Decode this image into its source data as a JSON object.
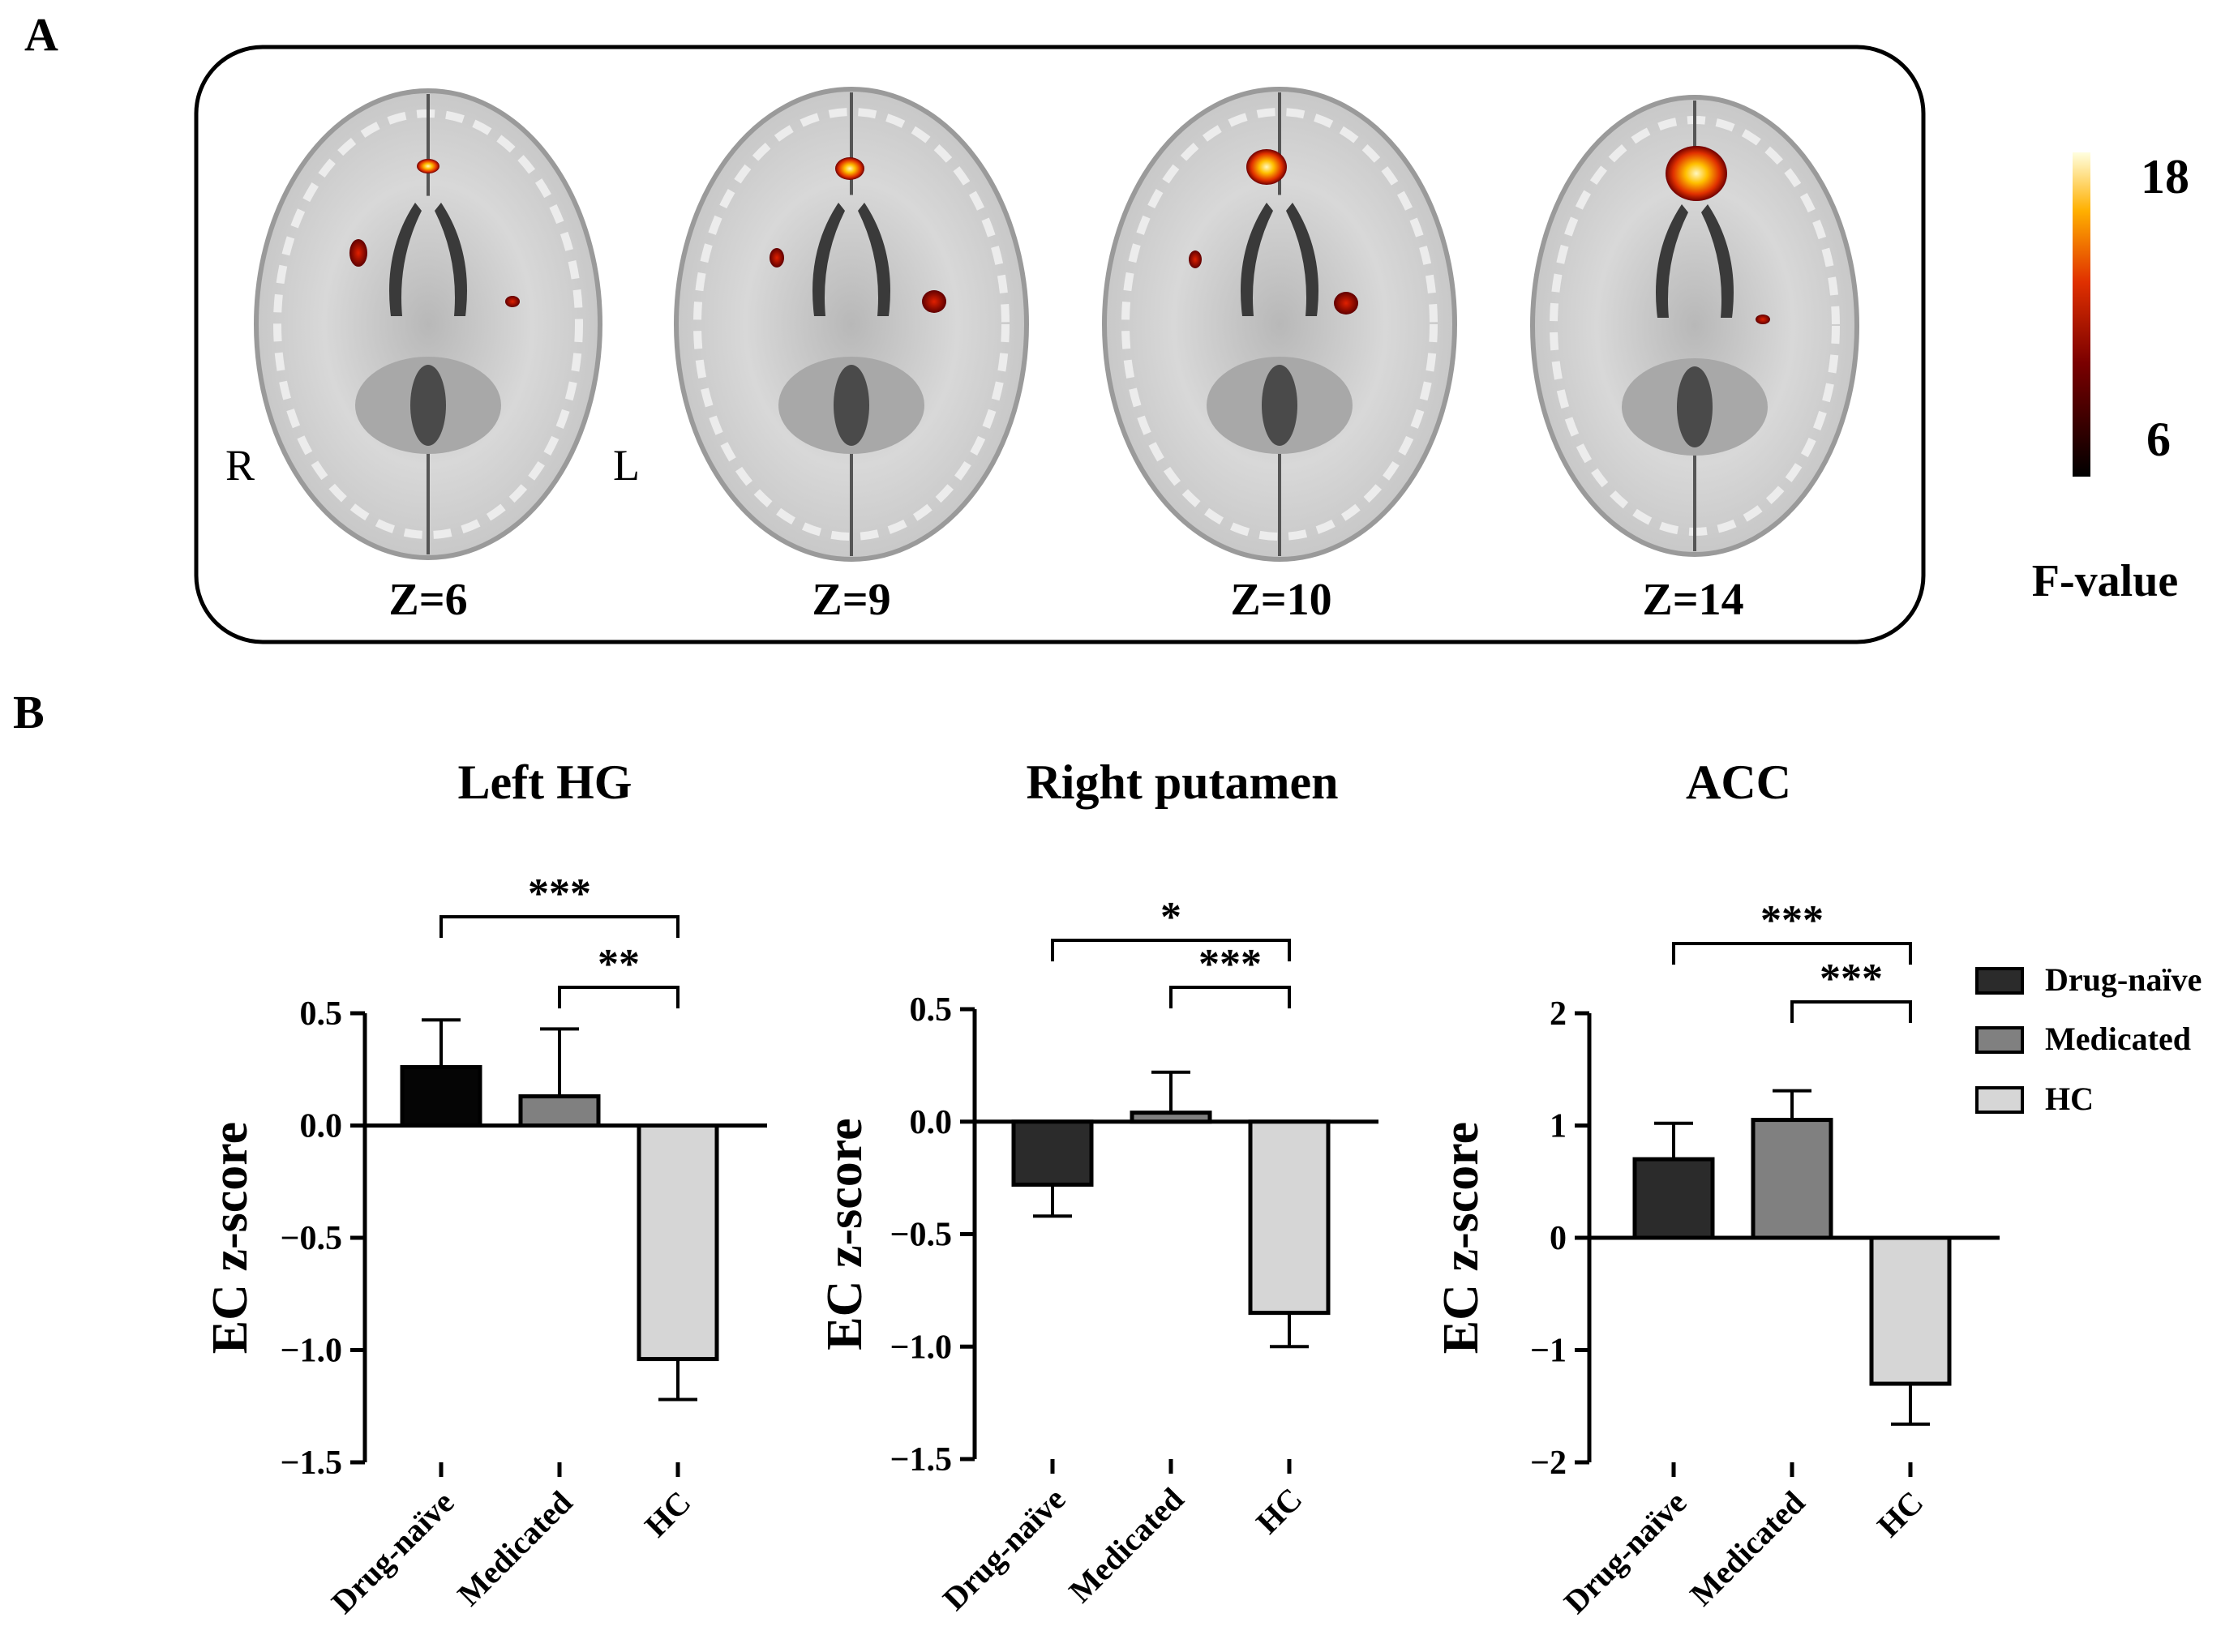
{
  "panel_a": {
    "label": "A",
    "orientation": {
      "right": "R",
      "left": "L"
    },
    "slices": [
      "Z=6",
      "Z=9",
      "Z=10",
      "Z=14"
    ],
    "colorbar": {
      "max": "18",
      "min": "6",
      "title": "F-value"
    }
  },
  "panel_b": {
    "label": "B",
    "legend": [
      "Drug-naïve",
      "Medicated",
      "HC"
    ]
  },
  "colors": {
    "drug_naive": "#2b2b2b",
    "drug_naive_first": "#050505",
    "medicated": "#808080",
    "hc": "#d6d6d6",
    "axis": "#000000"
  },
  "chart_data": [
    {
      "type": "bar",
      "title": "Left HG",
      "ylabel": "EC z-score",
      "categories": [
        "Drug-naïve",
        "Medicated",
        "HC"
      ],
      "values": [
        0.26,
        0.13,
        -1.04
      ],
      "errors": [
        0.21,
        0.3,
        0.18
      ],
      "ylim": [
        -1.5,
        0.5
      ],
      "yticks": [
        0.5,
        0.0,
        -0.5,
        -1.0,
        -1.5
      ],
      "ytick_labels": [
        "0.5",
        "0.0",
        "−0.5",
        "−1.0",
        "−1.5"
      ],
      "significance": [
        {
          "from": 0,
          "to": 2,
          "label": "***"
        },
        {
          "from": 1,
          "to": 2,
          "label": "**"
        }
      ]
    },
    {
      "type": "bar",
      "title": "Right putamen",
      "ylabel": "EC z-score",
      "categories": [
        "Drug-naïve",
        "Medicated",
        "HC"
      ],
      "values": [
        -0.28,
        0.04,
        -0.85
      ],
      "errors": [
        0.14,
        0.18,
        0.15
      ],
      "ylim": [
        -1.5,
        0.5
      ],
      "yticks": [
        0.5,
        0.0,
        -0.5,
        -1.0,
        -1.5
      ],
      "ytick_labels": [
        "0.5",
        "0.0",
        "−0.5",
        "−1.0",
        "−1.5"
      ],
      "significance": [
        {
          "from": 0,
          "to": 2,
          "label": "*"
        },
        {
          "from": 1,
          "to": 2,
          "label": "***"
        }
      ]
    },
    {
      "type": "bar",
      "title": "ACC",
      "ylabel": "EC z-score",
      "categories": [
        "Drug-naïve",
        "Medicated",
        "HC"
      ],
      "values": [
        0.7,
        1.05,
        -1.3
      ],
      "errors": [
        0.32,
        0.26,
        0.36
      ],
      "ylim": [
        -2,
        2
      ],
      "yticks": [
        2,
        1,
        0,
        -1,
        -2
      ],
      "ytick_labels": [
        "2",
        "1",
        "0",
        "−1",
        "−2"
      ],
      "significance": [
        {
          "from": 0,
          "to": 2,
          "label": "***"
        },
        {
          "from": 1,
          "to": 2,
          "label": "***"
        }
      ]
    }
  ]
}
